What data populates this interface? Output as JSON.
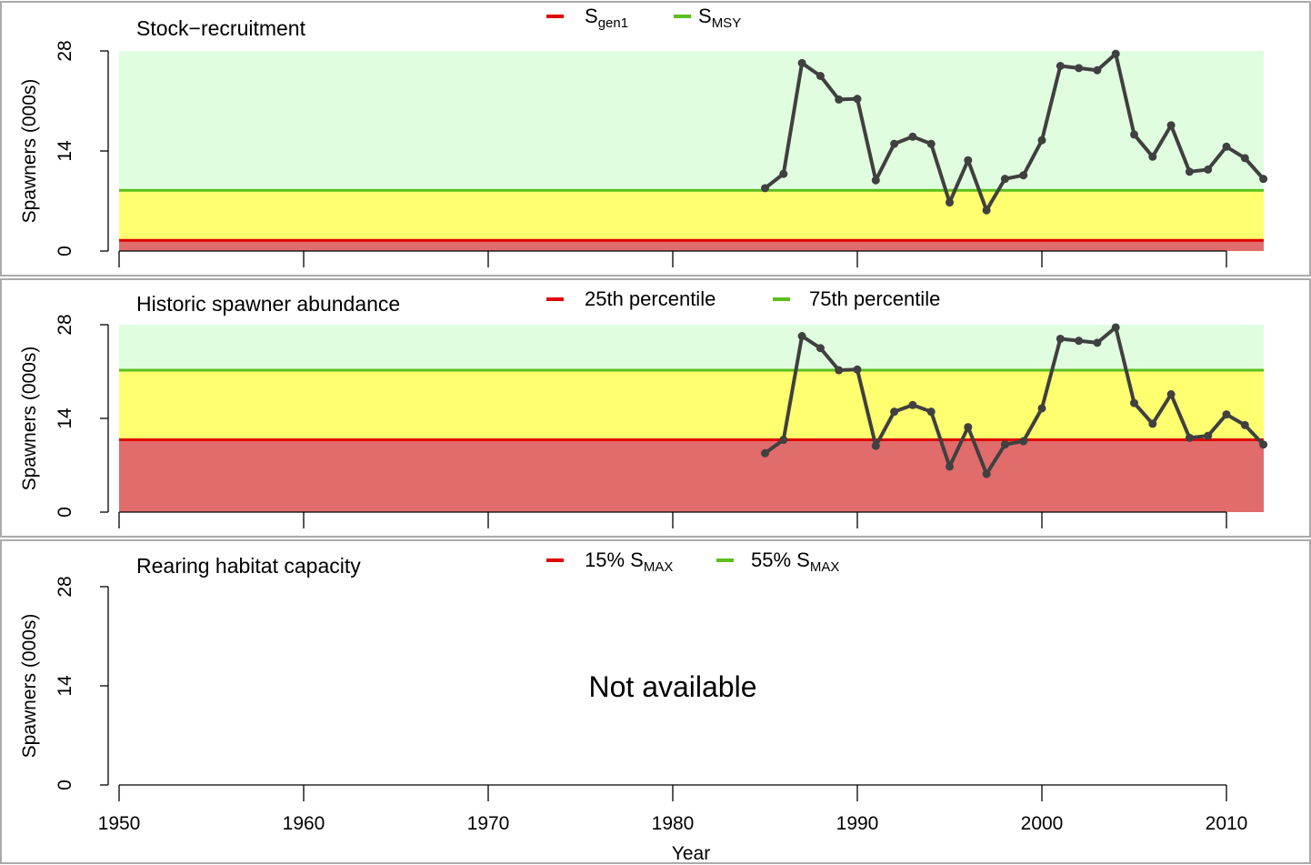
{
  "chart_data": [
    {
      "type": "line",
      "title": "Stock−recruitment",
      "ylabel": "Spawners (000s)",
      "xlim": [
        1950,
        2012
      ],
      "ylim": [
        0,
        28
      ],
      "yticks": [
        "0",
        "14",
        "28"
      ],
      "legend": [
        {
          "base": "S",
          "sub": "gen1",
          "color": "#e00000"
        },
        {
          "base": "S",
          "sub": "MSY",
          "color": "#5cbf1f"
        }
      ],
      "lower_benchmark": 1.5,
      "upper_benchmark": 8.5,
      "zones": {
        "red": "#e06c6c",
        "yellow": "#ffff70",
        "green": "#e0fde0"
      },
      "x": [
        1985,
        1986,
        1987,
        1988,
        1989,
        1990,
        1991,
        1992,
        1993,
        1994,
        1995,
        1996,
        1997,
        1998,
        1999,
        2000,
        2001,
        2002,
        2003,
        2004,
        2005,
        2006,
        2007,
        2008,
        2009,
        2010,
        2011,
        2012
      ],
      "values": [
        8.8,
        10.8,
        26.3,
        24.5,
        21.2,
        21.3,
        9.9,
        15.0,
        16.0,
        15.0,
        6.8,
        12.7,
        5.7,
        10.1,
        10.6,
        15.5,
        25.9,
        25.6,
        25.3,
        27.6,
        16.3,
        13.2,
        17.6,
        11.1,
        11.4,
        14.6,
        13.0,
        10.1
      ]
    },
    {
      "type": "line",
      "title": "Historic spawner abundance",
      "ylabel": "Spawners (000s)",
      "xlim": [
        1950,
        2012
      ],
      "ylim": [
        0,
        28
      ],
      "yticks": [
        "0",
        "14",
        "28"
      ],
      "legend": [
        {
          "base": "25th percentile",
          "sub": "",
          "color": "#e00000"
        },
        {
          "base": "75th percentile",
          "sub": "",
          "color": "#5cbf1f"
        }
      ],
      "lower_benchmark": 10.8,
      "upper_benchmark": 21.2,
      "zones": {
        "red": "#e06c6c",
        "yellow": "#ffff70",
        "green": "#e0fde0"
      },
      "x": [
        1985,
        1986,
        1987,
        1988,
        1989,
        1990,
        1991,
        1992,
        1993,
        1994,
        1995,
        1996,
        1997,
        1998,
        1999,
        2000,
        2001,
        2002,
        2003,
        2004,
        2005,
        2006,
        2007,
        2008,
        2009,
        2010,
        2011,
        2012
      ],
      "values": [
        8.8,
        10.8,
        26.3,
        24.5,
        21.2,
        21.3,
        9.9,
        15.0,
        16.0,
        15.0,
        6.8,
        12.7,
        5.7,
        10.1,
        10.6,
        15.5,
        25.9,
        25.6,
        25.3,
        27.6,
        16.3,
        13.2,
        17.6,
        11.1,
        11.4,
        14.6,
        13.0,
        10.1
      ]
    },
    {
      "type": "line",
      "title": "Rearing habitat capacity",
      "ylabel": "Spawners (000s)",
      "xlabel": "Year",
      "xlim": [
        1950,
        2012
      ],
      "ylim": [
        0,
        28
      ],
      "yticks": [
        "0",
        "14",
        "28"
      ],
      "xticks": [
        "1950",
        "1960",
        "1970",
        "1980",
        "1990",
        "2000",
        "2010"
      ],
      "legend": [
        {
          "base": "15% S",
          "sub": "MAX",
          "color": "#e00000"
        },
        {
          "base": "55% S",
          "sub": "MAX",
          "color": "#5cbf1f"
        }
      ],
      "note": "Not available",
      "x": [],
      "values": []
    }
  ]
}
